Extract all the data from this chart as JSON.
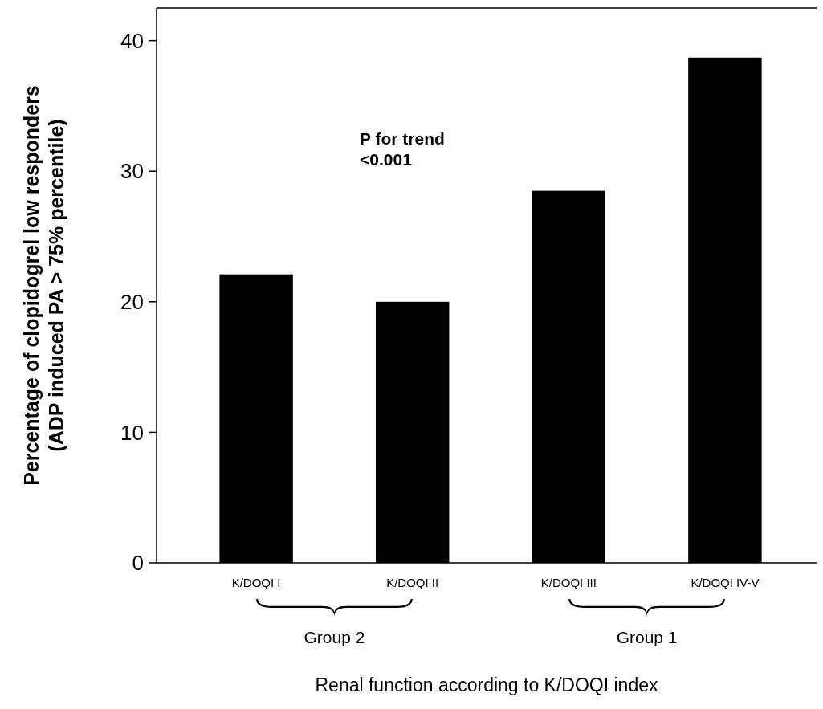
{
  "chart_data": {
    "type": "bar",
    "categories": [
      "K/DOQI I",
      "K/DOQI II",
      "K/DOQI III",
      "K/DOQI IV-V"
    ],
    "values": [
      22.1,
      20.0,
      28.5,
      38.7
    ],
    "color": "#000000",
    "ylim": [
      0,
      42.5
    ],
    "yticks": [
      0,
      10,
      20,
      30,
      40
    ],
    "grid": false,
    "ylabel": "Percentage of clopidogrel low responders\n(ADP induced PA > 75% percentile)",
    "xlabel": "Renal function according to K/DOQI index",
    "annotations": [
      "P for trend\n<0.001",
      "Group 2",
      "Group 1"
    ]
  }
}
